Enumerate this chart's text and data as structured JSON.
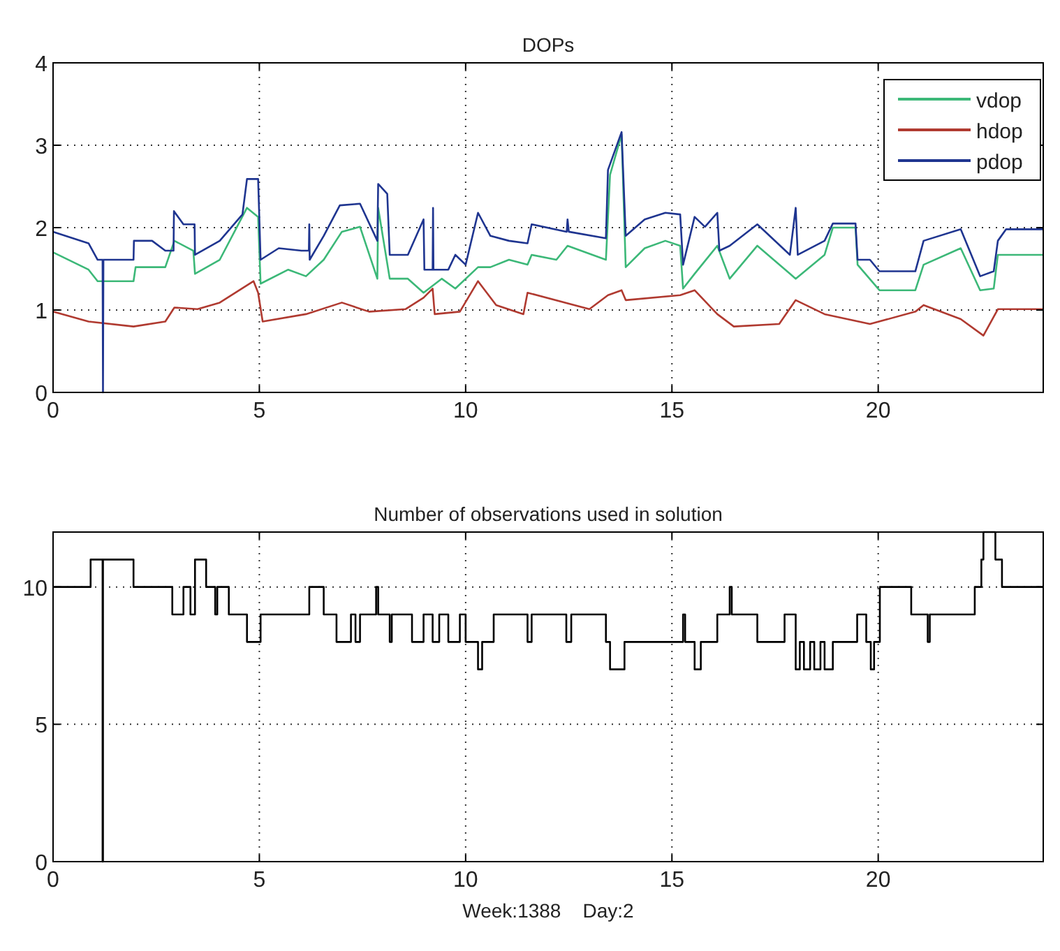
{
  "chart_data": [
    {
      "type": "line",
      "title": "DOPs",
      "xlim": [
        0,
        24
      ],
      "xticks": [
        0,
        5,
        10,
        15,
        20
      ],
      "ylim": [
        0,
        4
      ],
      "yticks": [
        0,
        1,
        2,
        3,
        4
      ],
      "grid": true,
      "legend": "top right",
      "series": [
        {
          "name": "vdop",
          "color": "#3cb878",
          "x": [
            0,
            0.86,
            1.08,
            1.95,
            2.0,
            2.72,
            2.94,
            3.4,
            3.44,
            4.04,
            4.7,
            4.97,
            5.03,
            5.7,
            6.13,
            6.56,
            7.0,
            7.44,
            7.86,
            7.88,
            8.16,
            8.6,
            8.98,
            9.42,
            9.75,
            10.3,
            10.6,
            11.05,
            11.5,
            11.6,
            12.2,
            12.47,
            13.4,
            13.5,
            13.78,
            13.88,
            14.34,
            14.84,
            15.2,
            15.27,
            15.55,
            16.1,
            16.4,
            17.07,
            17.86,
            18.0,
            18.7,
            18.9,
            19.45,
            19.5,
            20.03,
            20.9,
            21.1,
            22.0,
            22.47,
            22.8,
            22.9,
            24
          ],
          "values": [
            1.7,
            1.49,
            1.35,
            1.35,
            1.52,
            1.52,
            1.84,
            1.72,
            1.44,
            1.61,
            2.24,
            2.13,
            1.32,
            1.49,
            1.41,
            1.61,
            1.95,
            2.01,
            1.38,
            2.24,
            1.38,
            1.38,
            1.21,
            1.38,
            1.26,
            1.52,
            1.52,
            1.61,
            1.55,
            1.67,
            1.61,
            1.78,
            1.61,
            2.64,
            3.13,
            1.52,
            1.75,
            1.84,
            1.78,
            1.26,
            1.44,
            1.78,
            1.38,
            1.78,
            1.44,
            1.38,
            1.67,
            2.0,
            2.0,
            1.55,
            1.24,
            1.24,
            1.55,
            1.75,
            1.24,
            1.26,
            1.67,
            1.67
          ]
        },
        {
          "name": "hdop",
          "color": "#b03a30",
          "x": [
            0,
            0.86,
            1.95,
            2.72,
            2.94,
            3.5,
            4.04,
            4.86,
            4.97,
            5.08,
            6.13,
            7.0,
            7.66,
            8.54,
            8.98,
            9.2,
            9.25,
            9.86,
            10.3,
            10.74,
            11.4,
            11.5,
            13.0,
            13.45,
            13.78,
            13.88,
            15.2,
            15.55,
            16.1,
            16.5,
            17.6,
            18.0,
            18.7,
            19.8,
            20.9,
            21.1,
            22.0,
            22.55,
            22.9,
            24
          ],
          "values": [
            0.98,
            0.86,
            0.8,
            0.86,
            1.03,
            1.01,
            1.09,
            1.35,
            1.21,
            0.86,
            0.95,
            1.09,
            0.98,
            1.01,
            1.15,
            1.26,
            0.95,
            0.98,
            1.35,
            1.06,
            0.95,
            1.21,
            1.01,
            1.18,
            1.24,
            1.12,
            1.18,
            1.24,
            0.95,
            0.8,
            0.83,
            1.12,
            0.95,
            0.83,
            0.98,
            1.06,
            0.89,
            0.69,
            1.01,
            1.01
          ]
        },
        {
          "name": "pdop",
          "color": "#1f3590",
          "x": [
            0,
            0.86,
            1.08,
            1.2,
            1.21,
            1.22,
            1.95,
            1.96,
            2.4,
            2.72,
            2.92,
            2.93,
            3.16,
            3.43,
            3.44,
            4.04,
            4.59,
            4.7,
            4.97,
            5.03,
            5.47,
            6.02,
            6.2,
            6.21,
            6.22,
            6.56,
            6.95,
            7.44,
            7.86,
            7.88,
            8.1,
            8.16,
            8.6,
            8.98,
            9.0,
            9.2,
            9.21,
            9.22,
            9.58,
            9.75,
            10.0,
            10.3,
            10.6,
            11.05,
            11.5,
            11.6,
            12.45,
            12.47,
            12.5,
            13.4,
            13.45,
            13.78,
            13.88,
            14.34,
            14.84,
            15.2,
            15.27,
            15.55,
            15.8,
            16.1,
            16.15,
            16.4,
            17.07,
            17.86,
            18.0,
            18.05,
            18.7,
            18.9,
            19.45,
            19.5,
            19.8,
            20.03,
            20.9,
            21.1,
            22.0,
            22.47,
            22.8,
            22.9,
            23.1,
            24
          ],
          "values": [
            1.95,
            1.81,
            1.61,
            1.61,
            0,
            1.61,
            1.61,
            1.84,
            1.84,
            1.72,
            1.72,
            2.2,
            2.04,
            2.04,
            1.67,
            1.84,
            2.16,
            2.59,
            2.59,
            1.61,
            1.75,
            1.72,
            1.72,
            2.04,
            1.61,
            1.9,
            2.27,
            2.29,
            1.84,
            2.53,
            2.41,
            1.67,
            1.67,
            2.1,
            1.49,
            1.49,
            2.24,
            1.49,
            1.49,
            1.67,
            1.55,
            2.18,
            1.9,
            1.84,
            1.81,
            2.04,
            1.95,
            2.1,
            1.95,
            1.87,
            2.7,
            3.16,
            1.9,
            2.1,
            2.18,
            2.16,
            1.55,
            2.13,
            2.01,
            2.18,
            1.72,
            1.78,
            2.04,
            1.67,
            2.24,
            1.67,
            1.84,
            2.05,
            2.05,
            1.61,
            1.61,
            1.47,
            1.47,
            1.84,
            1.98,
            1.41,
            1.47,
            1.84,
            1.98,
            1.98
          ]
        }
      ]
    },
    {
      "type": "step",
      "title": "Number of observations used in solution",
      "xlabel": "Week:1388    Day:2",
      "xlim": [
        0,
        24
      ],
      "xticks": [
        0,
        5,
        10,
        15,
        20
      ],
      "ylim": [
        0,
        12
      ],
      "yticks": [
        0,
        5,
        10
      ],
      "grid": true,
      "series": [
        {
          "color": "#000000",
          "x": [
            0,
            0.91,
            1.2,
            1.21,
            1.22,
            1.95,
            2.89,
            3.16,
            3.33,
            3.44,
            3.71,
            3.93,
            3.98,
            4.26,
            4.7,
            5.03,
            6.21,
            6.56,
            6.87,
            7.22,
            7.33,
            7.44,
            7.83,
            7.88,
            8.16,
            8.21,
            8.7,
            8.98,
            9.2,
            9.36,
            9.58,
            9.86,
            10.0,
            10.3,
            10.4,
            10.68,
            11.5,
            11.6,
            12.44,
            12.56,
            13.4,
            13.5,
            13.85,
            15.27,
            15.32,
            15.55,
            15.7,
            16.1,
            16.4,
            16.45,
            17.07,
            17.73,
            18.0,
            18.1,
            18.2,
            18.35,
            18.45,
            18.6,
            18.7,
            18.9,
            19.49,
            19.71,
            19.82,
            19.9,
            20.04,
            20.8,
            21.2,
            21.25,
            22.34,
            22.5,
            22.55,
            22.84,
            23.0,
            24
          ],
          "values": [
            10,
            11,
            0,
            11,
            11,
            10,
            9,
            10,
            9,
            11,
            10,
            9,
            10,
            9,
            8,
            9,
            10,
            9,
            8,
            9,
            8,
            9,
            10,
            9,
            8,
            9,
            8,
            9,
            8,
            9,
            8,
            9,
            8,
            7,
            8,
            9,
            8,
            9,
            8,
            9,
            8,
            7,
            8,
            9,
            8,
            7,
            8,
            9,
            10,
            9,
            8,
            9,
            7,
            8,
            7,
            8,
            7,
            8,
            7,
            8,
            9,
            8,
            7,
            8,
            10,
            9,
            8,
            9,
            10,
            11,
            12,
            11,
            10,
            10
          ]
        }
      ]
    }
  ]
}
